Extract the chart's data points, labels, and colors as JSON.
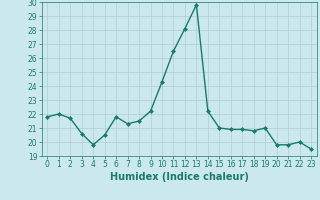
{
  "x": [
    0,
    1,
    2,
    3,
    4,
    5,
    6,
    7,
    8,
    9,
    10,
    11,
    12,
    13,
    14,
    15,
    16,
    17,
    18,
    19,
    20,
    21,
    22,
    23
  ],
  "y": [
    21.8,
    22.0,
    21.7,
    20.6,
    19.8,
    20.5,
    21.8,
    21.3,
    21.5,
    22.2,
    24.3,
    26.5,
    28.1,
    29.8,
    22.2,
    21.0,
    20.9,
    20.9,
    20.8,
    21.0,
    19.8,
    19.8,
    20.0,
    19.5
  ],
  "xlabel": "Humidex (Indice chaleur)",
  "ylim": [
    19,
    30
  ],
  "xlim": [
    -0.5,
    23.5
  ],
  "yticks": [
    19,
    20,
    21,
    22,
    23,
    24,
    25,
    26,
    27,
    28,
    29,
    30
  ],
  "xticks": [
    0,
    1,
    2,
    3,
    4,
    5,
    6,
    7,
    8,
    9,
    10,
    11,
    12,
    13,
    14,
    15,
    16,
    17,
    18,
    19,
    20,
    21,
    22,
    23
  ],
  "line_color": "#1a7a6e",
  "marker_color": "#1a7a6e",
  "bg_color": "#cce8ef",
  "grid_color": "#b0ced6",
  "xlabel_fontsize": 7,
  "tick_fontsize": 5.5,
  "line_width": 1.0,
  "marker_size": 2.0
}
